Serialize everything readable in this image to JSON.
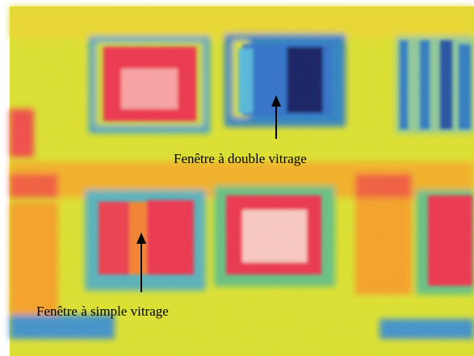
{
  "annotations": [
    {
      "label": "Fenêtre à double vitrage"
    },
    {
      "label": "Fenêtre à simple vitrage"
    }
  ]
}
